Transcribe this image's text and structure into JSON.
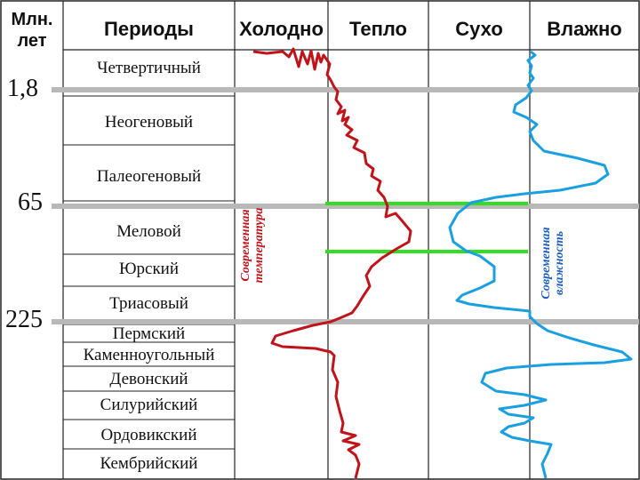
{
  "headers": {
    "age_col": "Млн.\nлет",
    "periods": "Периоды",
    "cold": "Холодно",
    "warm": "Тепло",
    "dry": "Сухо",
    "wet": "Влажно"
  },
  "ages": [
    {
      "id": "a18",
      "label": "1,8"
    },
    {
      "id": "a65",
      "label": "65"
    },
    {
      "id": "a225",
      "label": "225"
    }
  ],
  "periods": [
    "Четвертичный",
    "Неогеновый",
    "Палеогеновый",
    "Меловой",
    "Юрский",
    "Триасовый",
    "Пермский",
    "Каменноугольный",
    "Девонский",
    "Силурийский",
    "Ордовикский",
    "Кембрийский"
  ],
  "annotations": {
    "temp": "Современная\nтемпература",
    "humidity": "Современная\nвлажность"
  },
  "colors": {
    "temperature_curve": "#c0141a",
    "humidity_curve": "#1aa0e0",
    "boundary_gray": "#b8b8b8",
    "marker_green": "#33dd22",
    "temp_label": "#c0141a",
    "humidity_label": "#1a5fbf"
  }
}
